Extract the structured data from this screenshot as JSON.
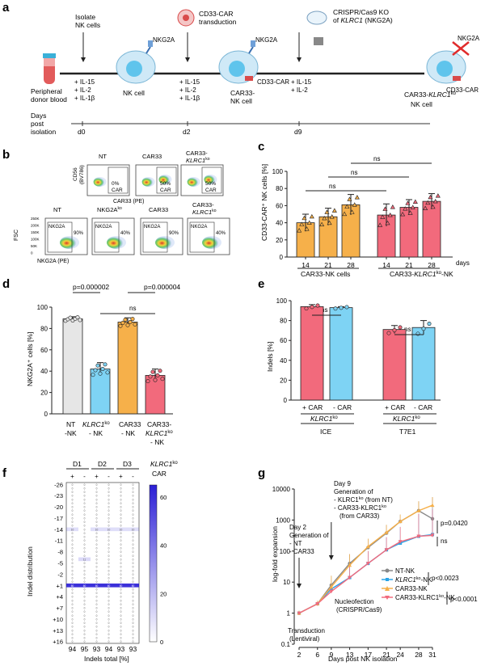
{
  "panel_a": {
    "letter": "a",
    "isolate": [
      "Isolate",
      "NK cells"
    ],
    "transduction": [
      "CD33-CAR",
      "transduction"
    ],
    "crispr": [
      "CRISPR/Cas9 KO",
      "of",
      "KLRC1",
      "(NKG2A)"
    ],
    "cyt1": [
      "+ IL-15",
      "+ IL-2",
      "+ IL-1β"
    ],
    "cyt2": [
      "+ IL-15",
      "+ IL-2",
      "+ IL-1β"
    ],
    "cyt3": [
      "+ IL-15",
      "+ IL-2"
    ],
    "donor": [
      "Peripheral",
      "donor blood"
    ],
    "nk_cell": "NK cell",
    "car33_nk": [
      "CAR33-",
      "NK cell"
    ],
    "car33_ko": [
      "CAR33-",
      "KLRC1",
      "ko",
      "NK cell"
    ],
    "nkg2a": "NKG2A",
    "cd33car": "CD33-CAR",
    "days": [
      "Days",
      "post",
      "isolation"
    ],
    "d0": "d0",
    "d2": "d2",
    "d9": "d9"
  },
  "panel_b": {
    "letter": "b",
    "top_titles": [
      "NT",
      "CAR33",
      "CAR33-",
      "KLRC1",
      "ko"
    ],
    "top_pcts": [
      "0%",
      "CAR",
      "50%",
      "CAR",
      "50%",
      "CAR"
    ],
    "top_ylabel": [
      "CD56",
      "(BV786)"
    ],
    "top_xlabel": "CAR33 (PE)",
    "bot_titles": [
      "NT",
      "NKG2A",
      "ko",
      "CAR33",
      "CAR33-",
      "KLRC1",
      "ko"
    ],
    "bot_gates": [
      "NKG2A",
      "NKG2A",
      "NKG2A",
      "NKG2A"
    ],
    "bot_pcts": [
      "90%",
      "40%",
      "90%",
      "40%"
    ],
    "bot_ylabel": "FSC",
    "bot_xlabel": "NKG2A (PE)",
    "yticks": [
      "250K",
      "200K",
      "150K",
      "100K",
      "50K",
      "0"
    ]
  },
  "panel_c": {
    "letter": "c",
    "ylabel": "CD33-CAR⁺ NK cells [%]",
    "yticks": [
      "0",
      "20",
      "40",
      "60",
      "80",
      "100"
    ],
    "ns": [
      "ns",
      "ns",
      "ns"
    ],
    "xticks": [
      "14",
      "21",
      "28",
      "14",
      "21",
      "28"
    ],
    "days": "days",
    "group1": "CAR33-NK cells",
    "group2": [
      "CAR33-",
      "KLRC1",
      "ko",
      "-NK"
    ]
  },
  "panel_d": {
    "letter": "d",
    "ylabel": "NKG2A⁺ cells [%]",
    "yticks": [
      "0",
      "20",
      "40",
      "60",
      "80",
      "100"
    ],
    "p1": "p=0.000002",
    "p2": "p=0.000004",
    "ns": "ns",
    "xlabels": [
      "NT",
      "-NK",
      "KLRC1",
      "ko",
      "- NK",
      "CAR33",
      "- NK",
      "CAR33-",
      "KLRC1",
      "ko",
      "- NK"
    ]
  },
  "panel_e": {
    "letter": "e",
    "ylabel": "Indels [%]",
    "yticks": [
      "0",
      "20",
      "40",
      "60",
      "80",
      "100"
    ],
    "ns": [
      "ns",
      "ns"
    ],
    "xticks": [
      "+ CAR",
      "- CAR",
      "+ CAR",
      "- CAR"
    ],
    "ko": [
      "KLRC1",
      "ko",
      "KLRC1",
      "ko"
    ],
    "methods": [
      "ICE",
      "T7E1"
    ]
  },
  "panel_f": {
    "letter": "f",
    "donors": [
      "D1",
      "D2",
      "D3"
    ],
    "ko_title": [
      "KLRC1",
      "ko"
    ],
    "car": "CAR",
    "signs": [
      "+",
      "-",
      "+",
      "-",
      "+",
      "-"
    ],
    "yticks": [
      "-26",
      "-23",
      "-20",
      "-17",
      "-14",
      "-11",
      "-8",
      "-5",
      "-2",
      "+1",
      "+4",
      "+7",
      "+10",
      "+13",
      "+16"
    ],
    "ylabel": "Indel distribution",
    "totals": [
      "94",
      "95",
      "93",
      "94",
      "93",
      "93"
    ],
    "xlabel": "Indels total [%]",
    "cbar_ticks": [
      "60",
      "40",
      "20",
      "0"
    ]
  },
  "panel_g": {
    "letter": "g",
    "ylabel": "log-fold expansion",
    "xlabel": "Days post NK isolation",
    "yticks": [
      "0.1",
      "1",
      "10",
      "100",
      "1000",
      "10000"
    ],
    "xticks": [
      "2",
      "6",
      "9",
      "13",
      "17",
      "21",
      "24",
      "28",
      "31"
    ],
    "ann_day9": [
      "Day 9",
      "Generation of",
      "- KLRC1",
      "ko",
      "(from NT)",
      "- CAR33-KLRC1",
      "ko",
      "(from CAR33)"
    ],
    "ann_day2": [
      "Day 2",
      "Generation of",
      "- NT",
      "- CAR33"
    ],
    "ann_transduction": [
      "Transduction",
      "(Lentiviral)"
    ],
    "ann_nucleofection": [
      "Nucleofection",
      "(CRISPR/Cas9)"
    ],
    "p_top": "p=0.0420",
    "ns": "ns",
    "p_mid": "p<0.0023",
    "p_bot": "p<0.0001",
    "legend": [
      "NT-NK",
      "KLRC1",
      "ko",
      "-NK",
      "CAR33-NK",
      "CAR33-KLRC1",
      "ko",
      "-NK"
    ]
  },
  "colors": {
    "orange": "#f6b04a",
    "red": "#f26a7c",
    "grey": "#e6e6e6",
    "blue": "#7ed3f4",
    "indigo": "#2b1fd6",
    "cell": "#9fd8f2"
  },
  "chart_data": [
    {
      "type": "bar",
      "panel": "c",
      "categories": [
        "14",
        "21",
        "28",
        "14",
        "21",
        "28"
      ],
      "groups": [
        "CAR33-NK cells",
        "CAR33-KLRC1ko-NK"
      ],
      "values": [
        40,
        47,
        61,
        49,
        58,
        65
      ],
      "errors": [
        10,
        10,
        12,
        13,
        9,
        9
      ],
      "ylabel": "CD33-CAR⁺ NK cells [%]",
      "ylim": [
        0,
        100
      ]
    },
    {
      "type": "bar",
      "panel": "d",
      "categories": [
        "NT-NK",
        "KLRC1ko-NK",
        "CAR33-NK",
        "CAR33-KLRC1ko-NK"
      ],
      "values": [
        89,
        42,
        86,
        36
      ],
      "errors": [
        2,
        6,
        4,
        6
      ],
      "ylabel": "NKG2A⁺ cells [%]",
      "ylim": [
        0,
        100
      ]
    },
    {
      "type": "bar",
      "panel": "e",
      "categories": [
        "+ CAR",
        "- CAR",
        "+ CAR",
        "- CAR"
      ],
      "groups": [
        "ICE",
        "T7E1"
      ],
      "values": [
        94,
        93,
        71,
        73
      ],
      "errors": [
        2,
        1,
        4,
        7
      ],
      "ylabel": "Indels [%]",
      "ylim": [
        0,
        100
      ]
    },
    {
      "type": "heatmap",
      "panel": "f",
      "columns": [
        "D1 +",
        "D1 -",
        "D2 +",
        "D2 -",
        "D3 +",
        "D3 -"
      ],
      "rows_range": [
        -26,
        16
      ],
      "highlights": [
        {
          "indel": 1,
          "values": [
            60,
            60,
            60,
            60,
            60,
            60
          ]
        },
        {
          "indel": -14,
          "values": [
            10,
            0,
            10,
            10,
            10,
            10
          ]
        },
        {
          "indel": -6,
          "values": [
            0,
            11,
            0,
            0,
            0,
            0
          ]
        }
      ],
      "totals": [
        94,
        95,
        93,
        94,
        93,
        93
      ],
      "ylabel": "Indel distribution",
      "xlabel": "Indels total [%]",
      "clim": [
        0,
        65
      ]
    },
    {
      "type": "line",
      "panel": "g",
      "x": [
        2,
        6,
        9,
        13,
        17,
        21,
        24,
        28,
        31
      ],
      "series": [
        {
          "name": "NT-NK",
          "values": [
            1,
            2,
            8,
            40,
            130,
            380,
            900,
            2000,
            1100
          ]
        },
        {
          "name": "KLRC1ko-NK",
          "values": [
            1,
            2,
            6,
            14,
            40,
            110,
            180,
            300,
            340
          ]
        },
        {
          "name": "CAR33-NK",
          "values": [
            1,
            2,
            7,
            35,
            140,
            400,
            900,
            2000,
            3000
          ]
        },
        {
          "name": "CAR33-KLRC1ko-NK",
          "values": [
            1,
            2,
            5,
            14,
            40,
            110,
            200,
            300,
            320
          ]
        }
      ],
      "errors_high": [
        1.2,
        2.5,
        16,
        80,
        250,
        700,
        1500,
        4000,
        5500
      ],
      "xlabel": "Days post NK isolation",
      "ylabel": "log-fold expansion",
      "ylim": [
        0.1,
        10000
      ],
      "yscale": "log"
    }
  ]
}
